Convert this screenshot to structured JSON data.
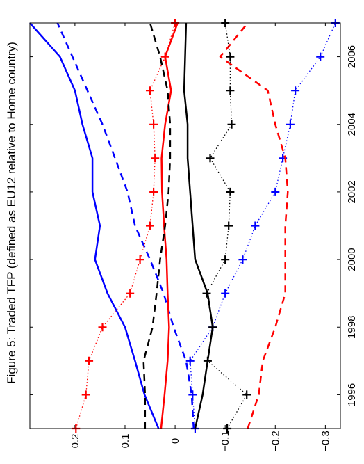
{
  "chart_data": {
    "type": "line",
    "title": "Figure 5: Traded TFP (defined as EU12 relative to Home country)",
    "orientation": "rotated-90-clockwise",
    "x": [
      1995,
      1996,
      1997,
      1998,
      1999,
      2000,
      2001,
      2002,
      2003,
      2004,
      2005,
      2006,
      2007
    ],
    "xlim": [
      1995,
      2007
    ],
    "ylim": [
      -0.33,
      0.29
    ],
    "x_ticks": [
      1996,
      1998,
      2000,
      2002,
      2004,
      2006
    ],
    "y_ticks": [
      0.2,
      0.1,
      0,
      -0.1,
      -0.2,
      -0.3
    ],
    "y_tick_labels": [
      "0.2",
      "0.1",
      "0",
      "−0.1",
      "−0.2",
      "−0.3"
    ],
    "grid": false,
    "series": [
      {
        "color": "#0000ff",
        "style": "solid",
        "marker": "none",
        "values": [
          0.033,
          0.061,
          0.08,
          0.1,
          0.135,
          0.16,
          0.15,
          0.165,
          0.165,
          0.185,
          0.2,
          0.23,
          0.29
        ]
      },
      {
        "color": "#0000ff",
        "style": "dashed",
        "marker": "none",
        "values": [
          -0.037,
          -0.033,
          -0.022,
          0.003,
          0.023,
          0.05,
          0.08,
          0.095,
          0.12,
          0.145,
          0.175,
          0.205,
          0.235
        ]
      },
      {
        "color": "#0000ff",
        "style": "dotted",
        "marker": "plus",
        "values": [
          -0.04,
          -0.035,
          -0.03,
          -0.075,
          -0.1,
          -0.135,
          -0.16,
          -0.2,
          -0.215,
          -0.23,
          -0.24,
          -0.29,
          -0.32
        ]
      },
      {
        "color": "#ff0000",
        "style": "solid",
        "marker": "none",
        "values": [
          0.028,
          0.021,
          0.015,
          0.012,
          0.015,
          0.017,
          0.022,
          0.026,
          0.027,
          0.02,
          0.008,
          0.02,
          -0.005
        ]
      },
      {
        "color": "#ff0000",
        "style": "dashed",
        "marker": "none",
        "values": [
          -0.145,
          -0.167,
          -0.175,
          -0.2,
          -0.22,
          -0.22,
          -0.22,
          -0.225,
          -0.22,
          -0.2,
          -0.185,
          -0.09,
          -0.145
        ]
      },
      {
        "color": "#ff0000",
        "style": "dotted",
        "marker": "plus",
        "values": [
          0.198,
          0.178,
          0.172,
          0.145,
          0.09,
          0.07,
          0.05,
          0.043,
          0.04,
          0.043,
          0.05,
          0.02,
          0.0
        ]
      },
      {
        "color": "#000000",
        "style": "solid",
        "marker": "none",
        "values": [
          -0.04,
          -0.055,
          -0.065,
          -0.075,
          -0.065,
          -0.04,
          -0.035,
          -0.03,
          -0.025,
          -0.025,
          -0.018,
          -0.02,
          -0.022
        ]
      },
      {
        "color": "#000000",
        "style": "dashed",
        "marker": "none",
        "values": [
          0.06,
          0.06,
          0.063,
          0.045,
          0.037,
          0.03,
          0.02,
          0.013,
          0.01,
          0.01,
          0.015,
          0.03,
          0.05
        ]
      },
      {
        "color": "#000000",
        "style": "dotted",
        "marker": "plus",
        "values": [
          -0.104,
          -0.143,
          -0.065,
          -0.075,
          -0.063,
          -0.1,
          -0.107,
          -0.11,
          -0.07,
          -0.113,
          -0.11,
          -0.11,
          -0.1
        ]
      }
    ]
  }
}
